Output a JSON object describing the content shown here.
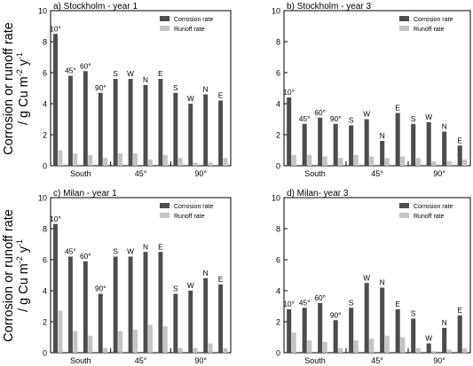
{
  "figure": {
    "ylabel_line1": "Corrosion or runoff rate",
    "ylabel_line2": "/ g Cu m",
    "ylabel_exp1": "-2",
    "ylabel_y": " y",
    "ylabel_exp2": "-1"
  },
  "colors": {
    "corrosion": "#4d4d4d",
    "runoff": "#c4c4c4",
    "axis": "#000000"
  },
  "chart_data": [
    {
      "type": "bar",
      "title": "a) Stockholm - year 1",
      "ylim": [
        0,
        10
      ],
      "yticks": [
        0,
        2,
        4,
        6,
        8,
        10
      ],
      "groups": [
        "South",
        "45°",
        "90°"
      ],
      "categories": [
        "10°",
        "45°",
        "60°",
        "90°",
        "S",
        "W",
        "N",
        "E",
        "S",
        "W",
        "N",
        "E"
      ],
      "series": [
        {
          "name": "Corrosion rate",
          "values": [
            8.5,
            5.8,
            6.1,
            4.7,
            5.6,
            5.6,
            5.2,
            5.6,
            4.7,
            4.0,
            4.6,
            4.2
          ]
        },
        {
          "name": "Runoff rate",
          "values": [
            1.0,
            0.8,
            0.7,
            0.5,
            0.8,
            0.8,
            0.4,
            0.7,
            0.5,
            0.2,
            0.2,
            0.5
          ]
        }
      ],
      "legend": "top-right",
      "grid": false
    },
    {
      "type": "bar",
      "title": "b) Stockholm - year 3",
      "ylim": [
        0,
        10
      ],
      "yticks": [
        0,
        2,
        4,
        6,
        8,
        10
      ],
      "groups": [
        "South",
        "45°",
        "90°"
      ],
      "categories": [
        "10°",
        "45°",
        "60°",
        "90°",
        "S",
        "W",
        "N",
        "E",
        "S",
        "W",
        "N",
        "E"
      ],
      "series": [
        {
          "name": "Corrosion rate",
          "values": [
            4.4,
            2.7,
            3.1,
            2.7,
            2.6,
            3.0,
            1.6,
            3.4,
            2.7,
            2.8,
            2.2,
            1.3
          ]
        },
        {
          "name": "Runoff rate",
          "values": [
            0.7,
            0.7,
            0.6,
            0.5,
            0.7,
            0.6,
            0.5,
            0.6,
            0.5,
            0.3,
            0.3,
            0.4
          ]
        }
      ],
      "legend": "top-right",
      "grid": false
    },
    {
      "type": "bar",
      "title": "c) Milan - year 1",
      "ylim": [
        0,
        10
      ],
      "yticks": [
        0,
        2,
        4,
        6,
        8,
        10
      ],
      "groups": [
        "South",
        "45°",
        "90°"
      ],
      "categories": [
        "10°",
        "45°",
        "60°",
        "90°",
        "S",
        "W",
        "N",
        "E",
        "S",
        "W",
        "N",
        "E"
      ],
      "series": [
        {
          "name": "Corrosion rate",
          "values": [
            8.3,
            6.2,
            5.9,
            3.8,
            6.2,
            6.2,
            6.5,
            6.5,
            3.8,
            4.0,
            4.8,
            4.4
          ]
        },
        {
          "name": "Runoff rate",
          "values": [
            2.7,
            1.4,
            1.1,
            0.3,
            1.4,
            1.5,
            1.8,
            1.7,
            0.3,
            0.3,
            0.6,
            0.3
          ]
        }
      ],
      "legend": "top-right",
      "grid": false
    },
    {
      "type": "bar",
      "title": "d) Milan- year 3",
      "ylim": [
        0,
        10
      ],
      "yticks": [
        0,
        2,
        4,
        6,
        8,
        10
      ],
      "groups": [
        "South",
        "45°",
        "90°"
      ],
      "categories": [
        "10°",
        "45°",
        "60°",
        "90°",
        "S",
        "W",
        "N",
        "E",
        "S",
        "W",
        "N",
        "E"
      ],
      "series": [
        {
          "name": "Corrosion rate",
          "values": [
            2.8,
            2.9,
            3.2,
            2.1,
            2.9,
            4.5,
            4.2,
            2.8,
            2.2,
            0.6,
            1.6,
            2.4
          ]
        },
        {
          "name": "Runoff rate",
          "values": [
            1.3,
            0.8,
            0.7,
            0.3,
            0.8,
            0.9,
            1.1,
            1.0,
            0.3,
            0.1,
            0.2,
            0.3
          ]
        }
      ],
      "legend": "top-right",
      "grid": false
    }
  ]
}
